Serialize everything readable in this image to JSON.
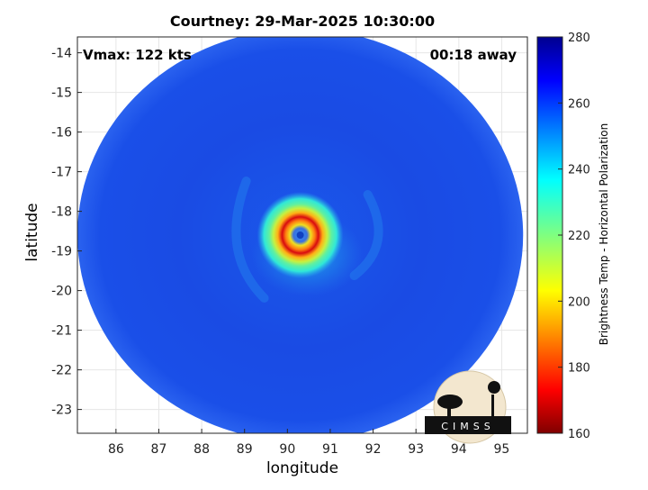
{
  "title": "Courtney: 29-Mar-2025 10:30:00",
  "vmax_text": "Vmax: 122 kts",
  "time_text": "00:18 away",
  "xlabel": "longitude",
  "ylabel": "latitude",
  "colorbar_label": "Brightness Temp - Horizontal Polarization",
  "logo_text": "CIMSS",
  "colors": {
    "background": "#ffffff",
    "swath_base": "#1a4be6",
    "eye": "#d80a10"
  },
  "chart_data": {
    "type": "heatmap",
    "title": "Courtney: 29-Mar-2025 10:30:00",
    "xlabel": "longitude",
    "ylabel": "latitude",
    "xlim": [
      85.1,
      95.6
    ],
    "ylim": [
      -23.6,
      -13.6
    ],
    "xticks": [
      86,
      87,
      88,
      89,
      90,
      91,
      92,
      93,
      94,
      95
    ],
    "yticks": [
      -14,
      -15,
      -16,
      -17,
      -18,
      -19,
      -20,
      -21,
      -22,
      -23
    ],
    "grid": true,
    "colormap": "jet",
    "colorbar": {
      "label": "Brightness Temp - Horizontal Polarization",
      "range": [
        160,
        280
      ],
      "ticks": [
        160,
        180,
        200,
        220,
        240,
        260,
        280
      ]
    },
    "storm_center": {
      "lon": 90.3,
      "lat": -18.6
    },
    "swath_center": {
      "lon": 90.3,
      "lat": -18.6
    },
    "swath_radius_deg": 5.2,
    "annotations": [
      "Vmax: 122 kts",
      "00:18 away"
    ]
  }
}
